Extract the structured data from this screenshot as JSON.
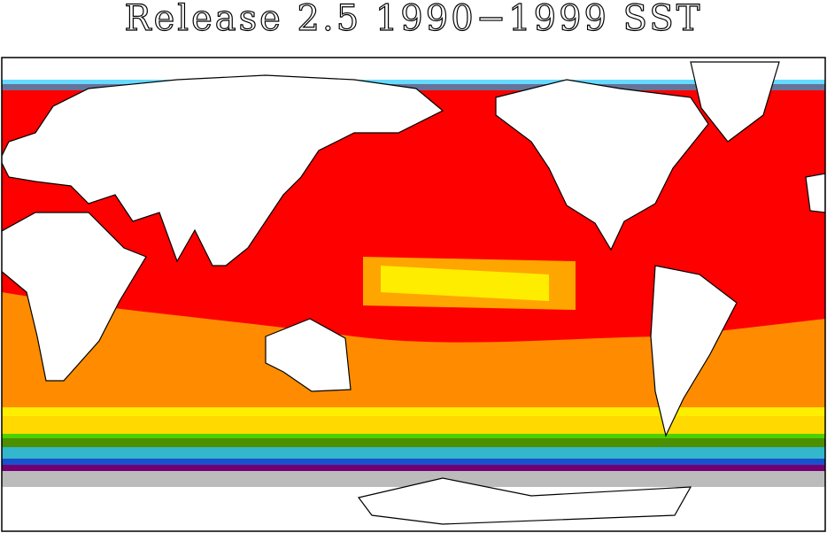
{
  "title": "Release 2.5 1990−1999 SST"
}
